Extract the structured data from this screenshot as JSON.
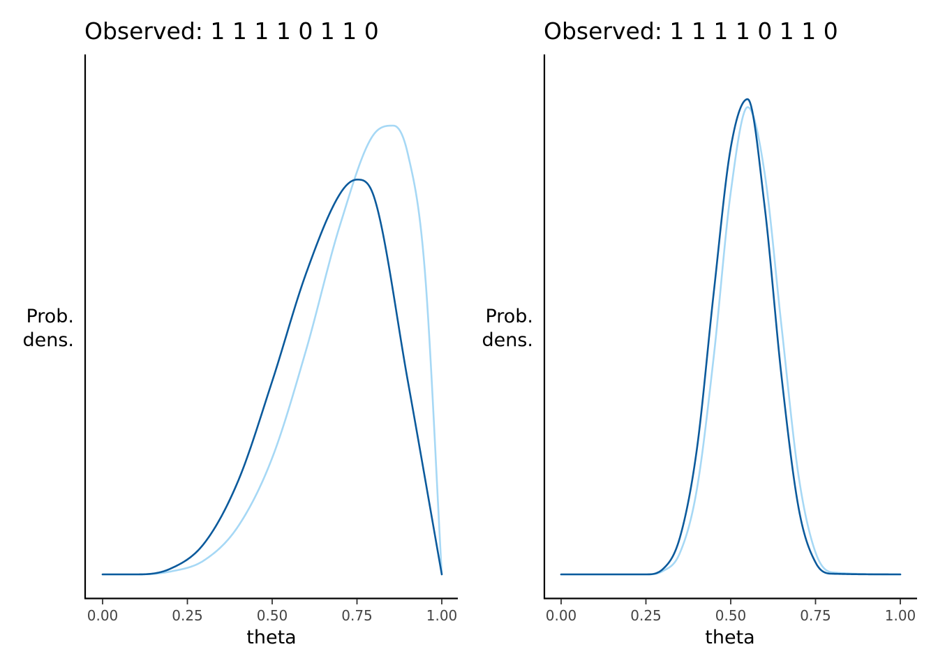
{
  "chart_data": [
    {
      "type": "line",
      "title": "Observed:  1 1 1 1 0 1 1 0",
      "xlabel": "theta",
      "ylabel": [
        "Prob.",
        "dens."
      ],
      "xlim": [
        0,
        1
      ],
      "x_ticks": [
        "0.00",
        "0.25",
        "0.50",
        "0.75",
        "1.00"
      ],
      "y_ticks_shown": false,
      "grid": false,
      "series": [
        {
          "color": "#a6d8f5",
          "x": [
            0.0,
            0.1,
            0.2,
            0.3,
            0.4,
            0.5,
            0.6,
            0.7,
            0.8,
            0.857,
            0.9,
            0.95,
            1.0
          ],
          "y": [
            0.0,
            0.0,
            0.01,
            0.05,
            0.17,
            0.41,
            0.79,
            1.23,
            1.55,
            1.58,
            1.48,
            1.07,
            0.0
          ]
        },
        {
          "color": "#0b5a9c",
          "x": [
            0.0,
            0.1,
            0.2,
            0.3,
            0.4,
            0.5,
            0.6,
            0.7,
            0.75,
            0.8,
            0.9,
            1.0
          ],
          "y": [
            0.0,
            0.0,
            0.02,
            0.11,
            0.33,
            0.68,
            1.06,
            1.34,
            1.39,
            1.33,
            0.68,
            0.0
          ]
        }
      ]
    },
    {
      "type": "line",
      "title": "Observed:  1 1 1 1 0 1 1 0",
      "xlabel": "theta",
      "ylabel": [
        "Prob.",
        "dens."
      ],
      "xlim": [
        0,
        1
      ],
      "x_ticks": [
        "0.00",
        "0.25",
        "0.50",
        "0.75",
        "1.00"
      ],
      "y_ticks_shown": false,
      "grid": false,
      "series": [
        {
          "color": "#a6d8f5",
          "x": [
            0.0,
            0.25,
            0.3,
            0.35,
            0.4,
            0.45,
            0.5,
            0.55,
            0.6,
            0.65,
            0.7,
            0.75,
            0.8,
            1.0
          ],
          "y": [
            0.0,
            0.0,
            0.05,
            0.32,
            1.27,
            3.27,
            5.73,
            7.01,
            6.02,
            3.71,
            1.48,
            0.33,
            0.03,
            0.0
          ]
        },
        {
          "color": "#0b5a9c",
          "x": [
            0.0,
            0.25,
            0.3,
            0.35,
            0.4,
            0.45,
            0.5,
            0.55,
            0.6,
            0.65,
            0.7,
            0.75,
            0.8,
            1.0
          ],
          "y": [
            0.0,
            0.0,
            0.08,
            0.55,
            1.87,
            4.23,
            6.4,
            7.13,
            5.52,
            2.96,
            1.0,
            0.18,
            0.01,
            0.0
          ]
        }
      ]
    }
  ],
  "colors": {
    "light_curve": "#a6d8f5",
    "dark_curve": "#0b5a9c",
    "axis": "#000000"
  }
}
